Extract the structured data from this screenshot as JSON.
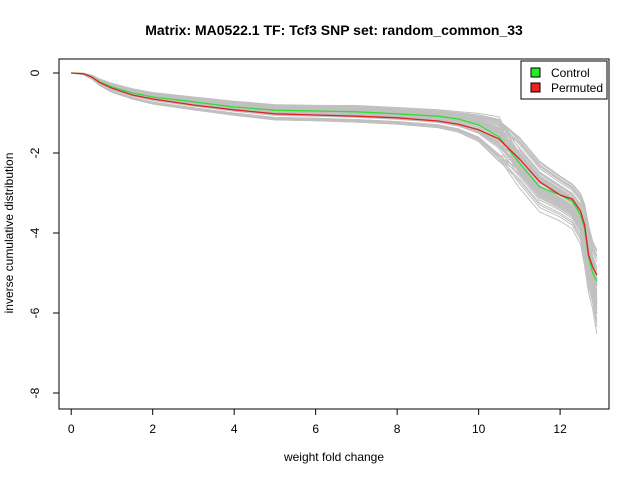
{
  "chart_data": {
    "type": "line",
    "title": "Matrix: MA0522.1 TF: Tcf3 SNP set: random_common_33",
    "xlabel": "weight fold change",
    "ylabel": "inverse cumulative distribution",
    "xlim": [
      -0.3,
      13.2
    ],
    "ylim": [
      -8.4,
      0.35
    ],
    "x_ticks": [
      0,
      2,
      4,
      6,
      8,
      10,
      12
    ],
    "y_ticks": [
      0,
      -2,
      -4,
      -6,
      -8
    ],
    "legend": {
      "position": "top-right",
      "entries": [
        {
          "label": "Control",
          "color": "#22ee22"
        },
        {
          "label": "Permuted",
          "color": "#ee2222"
        }
      ]
    },
    "series": [
      {
        "name": "Control",
        "color": "#33dd33",
        "x": [
          0,
          0.3,
          0.5,
          0.7,
          1.0,
          1.5,
          2.0,
          3.0,
          4.0,
          5.0,
          6.0,
          7.0,
          8.0,
          9.0,
          9.5,
          10.0,
          10.5,
          11.0,
          11.5,
          12.0,
          12.3,
          12.5,
          12.6,
          12.7,
          12.8,
          12.9
        ],
        "y": [
          0,
          -0.02,
          -0.1,
          -0.22,
          -0.35,
          -0.5,
          -0.6,
          -0.72,
          -0.85,
          -0.93,
          -0.95,
          -0.97,
          -1.02,
          -1.08,
          -1.15,
          -1.3,
          -1.6,
          -2.25,
          -2.85,
          -3.05,
          -3.2,
          -3.55,
          -3.9,
          -4.6,
          -5.0,
          -5.2
        ]
      },
      {
        "name": "Permuted",
        "color": "#dd2222",
        "x": [
          0,
          0.3,
          0.5,
          0.7,
          1.0,
          1.5,
          2.0,
          3.0,
          4.0,
          5.0,
          6.0,
          7.0,
          8.0,
          9.0,
          9.5,
          10.0,
          10.5,
          11.0,
          11.5,
          12.0,
          12.3,
          12.5,
          12.6,
          12.7,
          12.8,
          12.9
        ],
        "y": [
          0,
          -0.02,
          -0.1,
          -0.24,
          -0.38,
          -0.55,
          -0.65,
          -0.8,
          -0.92,
          -1.02,
          -1.05,
          -1.08,
          -1.12,
          -1.2,
          -1.28,
          -1.42,
          -1.65,
          -2.15,
          -2.72,
          -3.05,
          -3.15,
          -3.45,
          -3.8,
          -4.55,
          -4.85,
          -5.05
        ]
      }
    ],
    "background_series": {
      "color": "#c0c0c0",
      "count": 60,
      "base_x": [
        0,
        0.3,
        0.5,
        0.7,
        1.0,
        1.5,
        2.0,
        3.0,
        4.0,
        5.0,
        6.0,
        7.0,
        8.0,
        9.0,
        9.5,
        10.0,
        10.5,
        11.0,
        11.5,
        12.0,
        12.3,
        12.5,
        12.6,
        12.7,
        12.8,
        12.9
      ],
      "base_y": [
        0,
        -0.02,
        -0.1,
        -0.23,
        -0.37,
        -0.52,
        -0.63,
        -0.76,
        -0.88,
        -0.98,
        -1.0,
        -1.02,
        -1.07,
        -1.14,
        -1.22,
        -1.36,
        -1.65,
        -2.2,
        -2.8,
        -3.1,
        -3.3,
        -3.6,
        -4.0,
        -4.6,
        -5.0,
        -5.4
      ],
      "spread_y": [
        0,
        0.01,
        0.03,
        0.05,
        0.07,
        0.08,
        0.09,
        0.1,
        0.11,
        0.12,
        0.12,
        0.13,
        0.13,
        0.14,
        0.16,
        0.22,
        0.35,
        0.45,
        0.45,
        0.4,
        0.4,
        0.45,
        0.55,
        0.6,
        0.6,
        0.75
      ]
    }
  }
}
